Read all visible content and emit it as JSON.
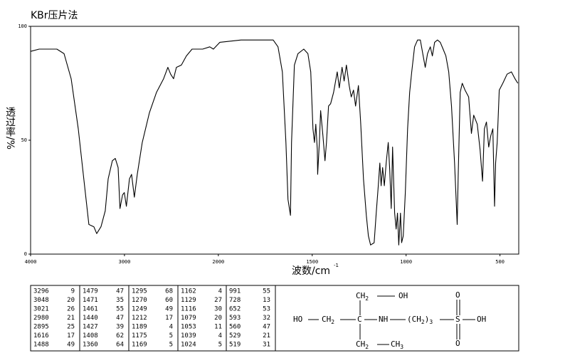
{
  "chart_data": {
    "type": "line",
    "title": "KBr压片法",
    "x_label": "波数/cm",
    "x_label_superscript": "-1",
    "y_label": "透过率/%",
    "x": [
      4000,
      3909,
      3720,
      3644,
      3568,
      3492,
      3417,
      3379,
      3326,
      3296,
      3250,
      3205,
      3174,
      3129,
      3098,
      3068,
      3048,
      3021,
      3002,
      2980,
      2947,
      2924,
      2895,
      2864,
      2811,
      2735,
      2659,
      2583,
      2538,
      2508,
      2477,
      2447,
      2394,
      2341,
      2280,
      2167,
      2091,
      2053,
      1992,
      1879,
      1765,
      1708,
      1682,
      1659,
      1640,
      1629,
      1616,
      1610,
      1595,
      1576,
      1545,
      1523,
      1508,
      1496,
      1488,
      1481,
      1473,
      1471,
      1462,
      1455,
      1443,
      1432,
      1424,
      1413,
      1402,
      1386,
      1367,
      1356,
      1341,
      1330,
      1318,
      1303,
      1292,
      1280,
      1269,
      1254,
      1242,
      1227,
      1212,
      1201,
      1189,
      1170,
      1159,
      1148,
      1140,
      1133,
      1125,
      1116,
      1106,
      1095,
      1087,
      1079,
      1072,
      1061,
      1053,
      1046,
      1039,
      1030,
      1024,
      1015,
      1004,
      992,
      981,
      970,
      955,
      939,
      924,
      909,
      898,
      886,
      871,
      860,
      848,
      833,
      818,
      803,
      788,
      773,
      758,
      742,
      728,
      723,
      712,
      701,
      686,
      667,
      652,
      640,
      621,
      606,
      593,
      583,
      572,
      560,
      549,
      538,
      529,
      523,
      515,
      504,
      485,
      462,
      439,
      420,
      405
    ],
    "values": [
      89,
      90,
      90,
      88,
      77,
      55,
      27,
      13,
      12,
      9,
      12,
      19,
      33,
      41,
      42,
      38,
      20,
      26,
      27,
      21,
      33,
      35,
      25,
      35,
      49,
      62,
      71,
      77,
      82,
      79,
      77,
      82,
      83,
      87,
      90,
      90,
      91,
      90,
      93,
      94,
      94,
      94,
      91,
      80,
      49,
      24,
      17,
      49,
      83,
      88,
      90,
      88,
      80,
      55,
      49,
      57,
      46,
      35,
      49,
      63,
      52,
      41,
      49,
      65,
      66,
      71,
      80,
      73,
      82,
      76,
      83,
      74,
      69,
      72,
      65,
      74,
      58,
      33,
      17,
      8,
      4,
      5,
      18,
      30,
      40,
      30,
      38,
      30,
      40,
      49,
      37,
      20,
      47,
      18,
      11,
      18,
      4,
      18,
      5,
      8,
      27,
      55,
      71,
      80,
      91,
      94,
      94,
      87,
      82,
      88,
      91,
      87,
      93,
      94,
      93,
      90,
      87,
      80,
      65,
      40,
      13,
      33,
      71,
      75,
      72,
      69,
      53,
      61,
      57,
      46,
      32,
      55,
      58,
      47,
      52,
      55,
      21,
      40,
      49,
      72,
      75,
      79,
      80,
      77,
      75
    ],
    "color": "#000000",
    "xlim": [
      4000,
      400
    ],
    "x_scale_break": {
      "at": 2000,
      "factor": 2
    },
    "ylim": [
      0,
      100
    ],
    "xticks": [
      4000,
      3000,
      2000,
      1500,
      1000,
      500
    ],
    "yticks": [
      0,
      50,
      100
    ]
  },
  "peak_table": [
    [
      [
        3296,
        9
      ],
      [
        3048,
        20
      ],
      [
        3021,
        26
      ],
      [
        2980,
        21
      ],
      [
        2895,
        25
      ],
      [
        1616,
        17
      ],
      [
        1488,
        49
      ]
    ],
    [
      [
        1479,
        47
      ],
      [
        1471,
        35
      ],
      [
        1461,
        55
      ],
      [
        1440,
        47
      ],
      [
        1427,
        39
      ],
      [
        1408,
        62
      ],
      [
        1360,
        64
      ]
    ],
    [
      [
        1295,
        68
      ],
      [
        1270,
        60
      ],
      [
        1249,
        49
      ],
      [
        1212,
        17
      ],
      [
        1189,
        4
      ],
      [
        1175,
        5
      ],
      [
        1169,
        5
      ]
    ],
    [
      [
        1162,
        4
      ],
      [
        1129,
        27
      ],
      [
        1116,
        30
      ],
      [
        1079,
        20
      ],
      [
        1053,
        11
      ],
      [
        1039,
        4
      ],
      [
        1024,
        5
      ]
    ],
    [
      [
        991,
        55
      ],
      [
        728,
        13
      ],
      [
        652,
        53
      ],
      [
        593,
        32
      ],
      [
        560,
        47
      ],
      [
        529,
        21
      ],
      [
        519,
        31
      ]
    ]
  ],
  "structure": {
    "nodes": [
      {
        "label": "HO"
      },
      {
        "label": "CH",
        "sub": "2"
      },
      {
        "label": "C"
      },
      {
        "label": "NH"
      },
      {
        "label": "(CH",
        "sub": "2",
        "tail": ")",
        "sub2": "3"
      },
      {
        "label": "S"
      },
      {
        "label": "OH"
      },
      {
        "label": "O"
      },
      {
        "label": "O"
      },
      {
        "label": "CH",
        "sub": "2"
      },
      {
        "label": "OH"
      },
      {
        "label": "CH",
        "sub": "2"
      },
      {
        "label": "CH",
        "sub": "3"
      }
    ]
  }
}
